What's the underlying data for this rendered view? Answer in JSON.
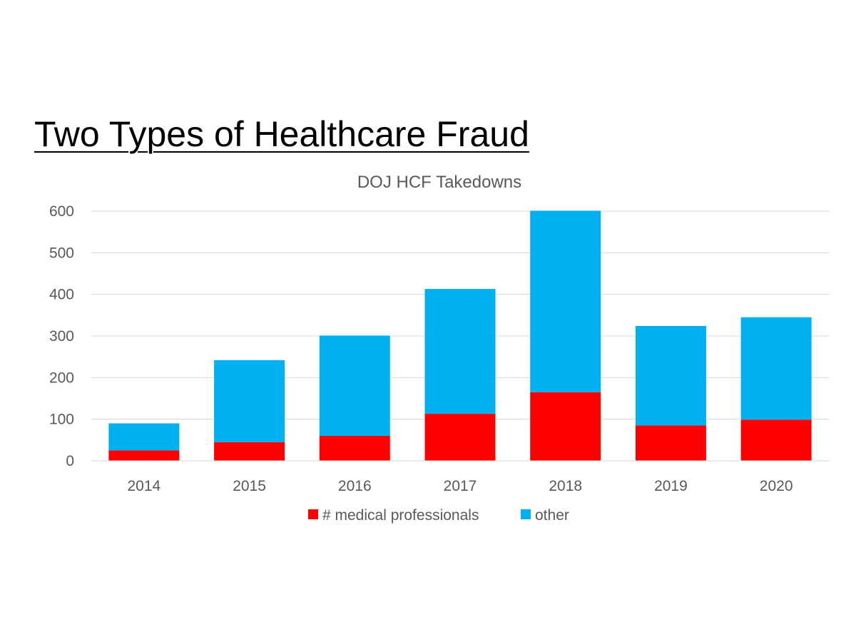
{
  "slide": {
    "title": "Two Types of Healthcare Fraud"
  },
  "chart_data": {
    "type": "bar",
    "stacked": true,
    "title": "DOJ HCF Takedowns",
    "xlabel": "",
    "ylabel": "",
    "categories": [
      "2014",
      "2015",
      "2016",
      "2017",
      "2018",
      "2019",
      "2020"
    ],
    "series": [
      {
        "name": "# medical professionals",
        "color": "#ff0000",
        "values": [
          25,
          45,
          60,
          113,
          165,
          85,
          99
        ]
      },
      {
        "name": "other",
        "color": "#00b0f0",
        "values": [
          65,
          197,
          241,
          300,
          436,
          239,
          246
        ]
      }
    ],
    "ylim": [
      0,
      600
    ],
    "yticks": [
      0,
      100,
      200,
      300,
      400,
      500,
      600
    ],
    "grid": true,
    "legend_position": "bottom"
  }
}
